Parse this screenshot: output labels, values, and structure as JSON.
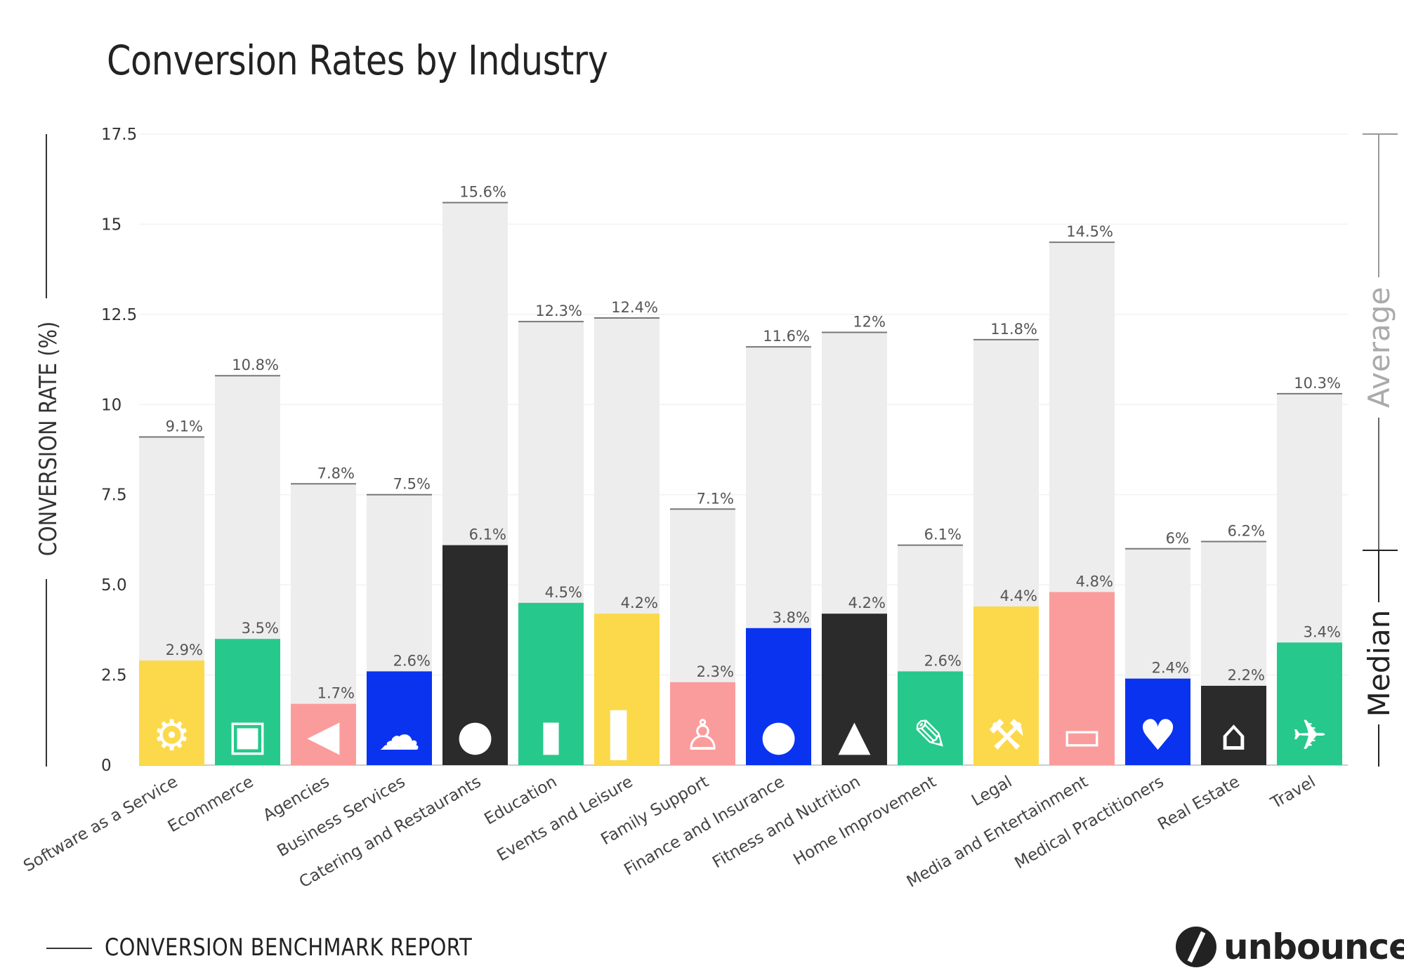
{
  "chart_data": {
    "type": "bar",
    "title": "Conversion Rates by Industry",
    "ylabel": "CONVERSION RATE (%)",
    "xlabel": "",
    "ylim": [
      0,
      17.5
    ],
    "yticks": [
      "0",
      "2.5",
      "5.0",
      "7.5",
      "10",
      "12.5",
      "15",
      "17.5"
    ],
    "ytick_values": [
      0,
      2.5,
      5,
      7.5,
      10,
      12.5,
      15,
      17.5
    ],
    "grid": true,
    "categories": [
      "Software as a Service",
      "Ecommerce",
      "Agencies",
      "Business Services",
      "Catering and Restaurants",
      "Education",
      "Events and Leisure",
      "Family Support",
      "Finance and Insurance",
      "Fitness and Nutrition",
      "Home Improvement",
      "Legal",
      "Media and Entertainment",
      "Medical Practitioners",
      "Real Estate",
      "Travel"
    ],
    "series": [
      {
        "name": "Average",
        "values": [
          9.1,
          10.8,
          7.8,
          7.5,
          15.6,
          12.3,
          12.4,
          7.1,
          11.6,
          12,
          6.1,
          11.8,
          14.5,
          6,
          6.2,
          10.3
        ],
        "color": "#ededed"
      },
      {
        "name": "Median",
        "values": [
          2.9,
          3.5,
          1.7,
          2.6,
          6.1,
          4.5,
          4.2,
          2.3,
          3.8,
          4.2,
          2.6,
          4.4,
          4.8,
          2.4,
          2.2,
          3.4
        ]
      }
    ],
    "median_colors": [
      "#fcd94a",
      "#27c88c",
      "#fb9c9c",
      "#0a33f0",
      "#2b2b2b",
      "#27c88c",
      "#fcd94a",
      "#fb9c9c",
      "#0a33f0",
      "#2b2b2b",
      "#27c88c",
      "#fcd94a",
      "#fb9c9c",
      "#0a33f0",
      "#2b2b2b",
      "#27c88c"
    ],
    "icons": [
      "gear-icon",
      "box-icon",
      "megaphone-icon",
      "cloud-icon",
      "spoon-icon",
      "book-icon",
      "microphone-icon",
      "person-icon",
      "piggy-bank-icon",
      "sneakers-icon",
      "paintbrush-icon",
      "gavel-icon",
      "tv-icon",
      "heart-icon",
      "house-icon",
      "airplane-icon"
    ],
    "legend": {
      "average_label": "Average",
      "median_label": "Median",
      "placement": "right"
    }
  },
  "footer": {
    "report": "CONVERSION BENCHMARK REPORT",
    "brand": "unbounce"
  }
}
